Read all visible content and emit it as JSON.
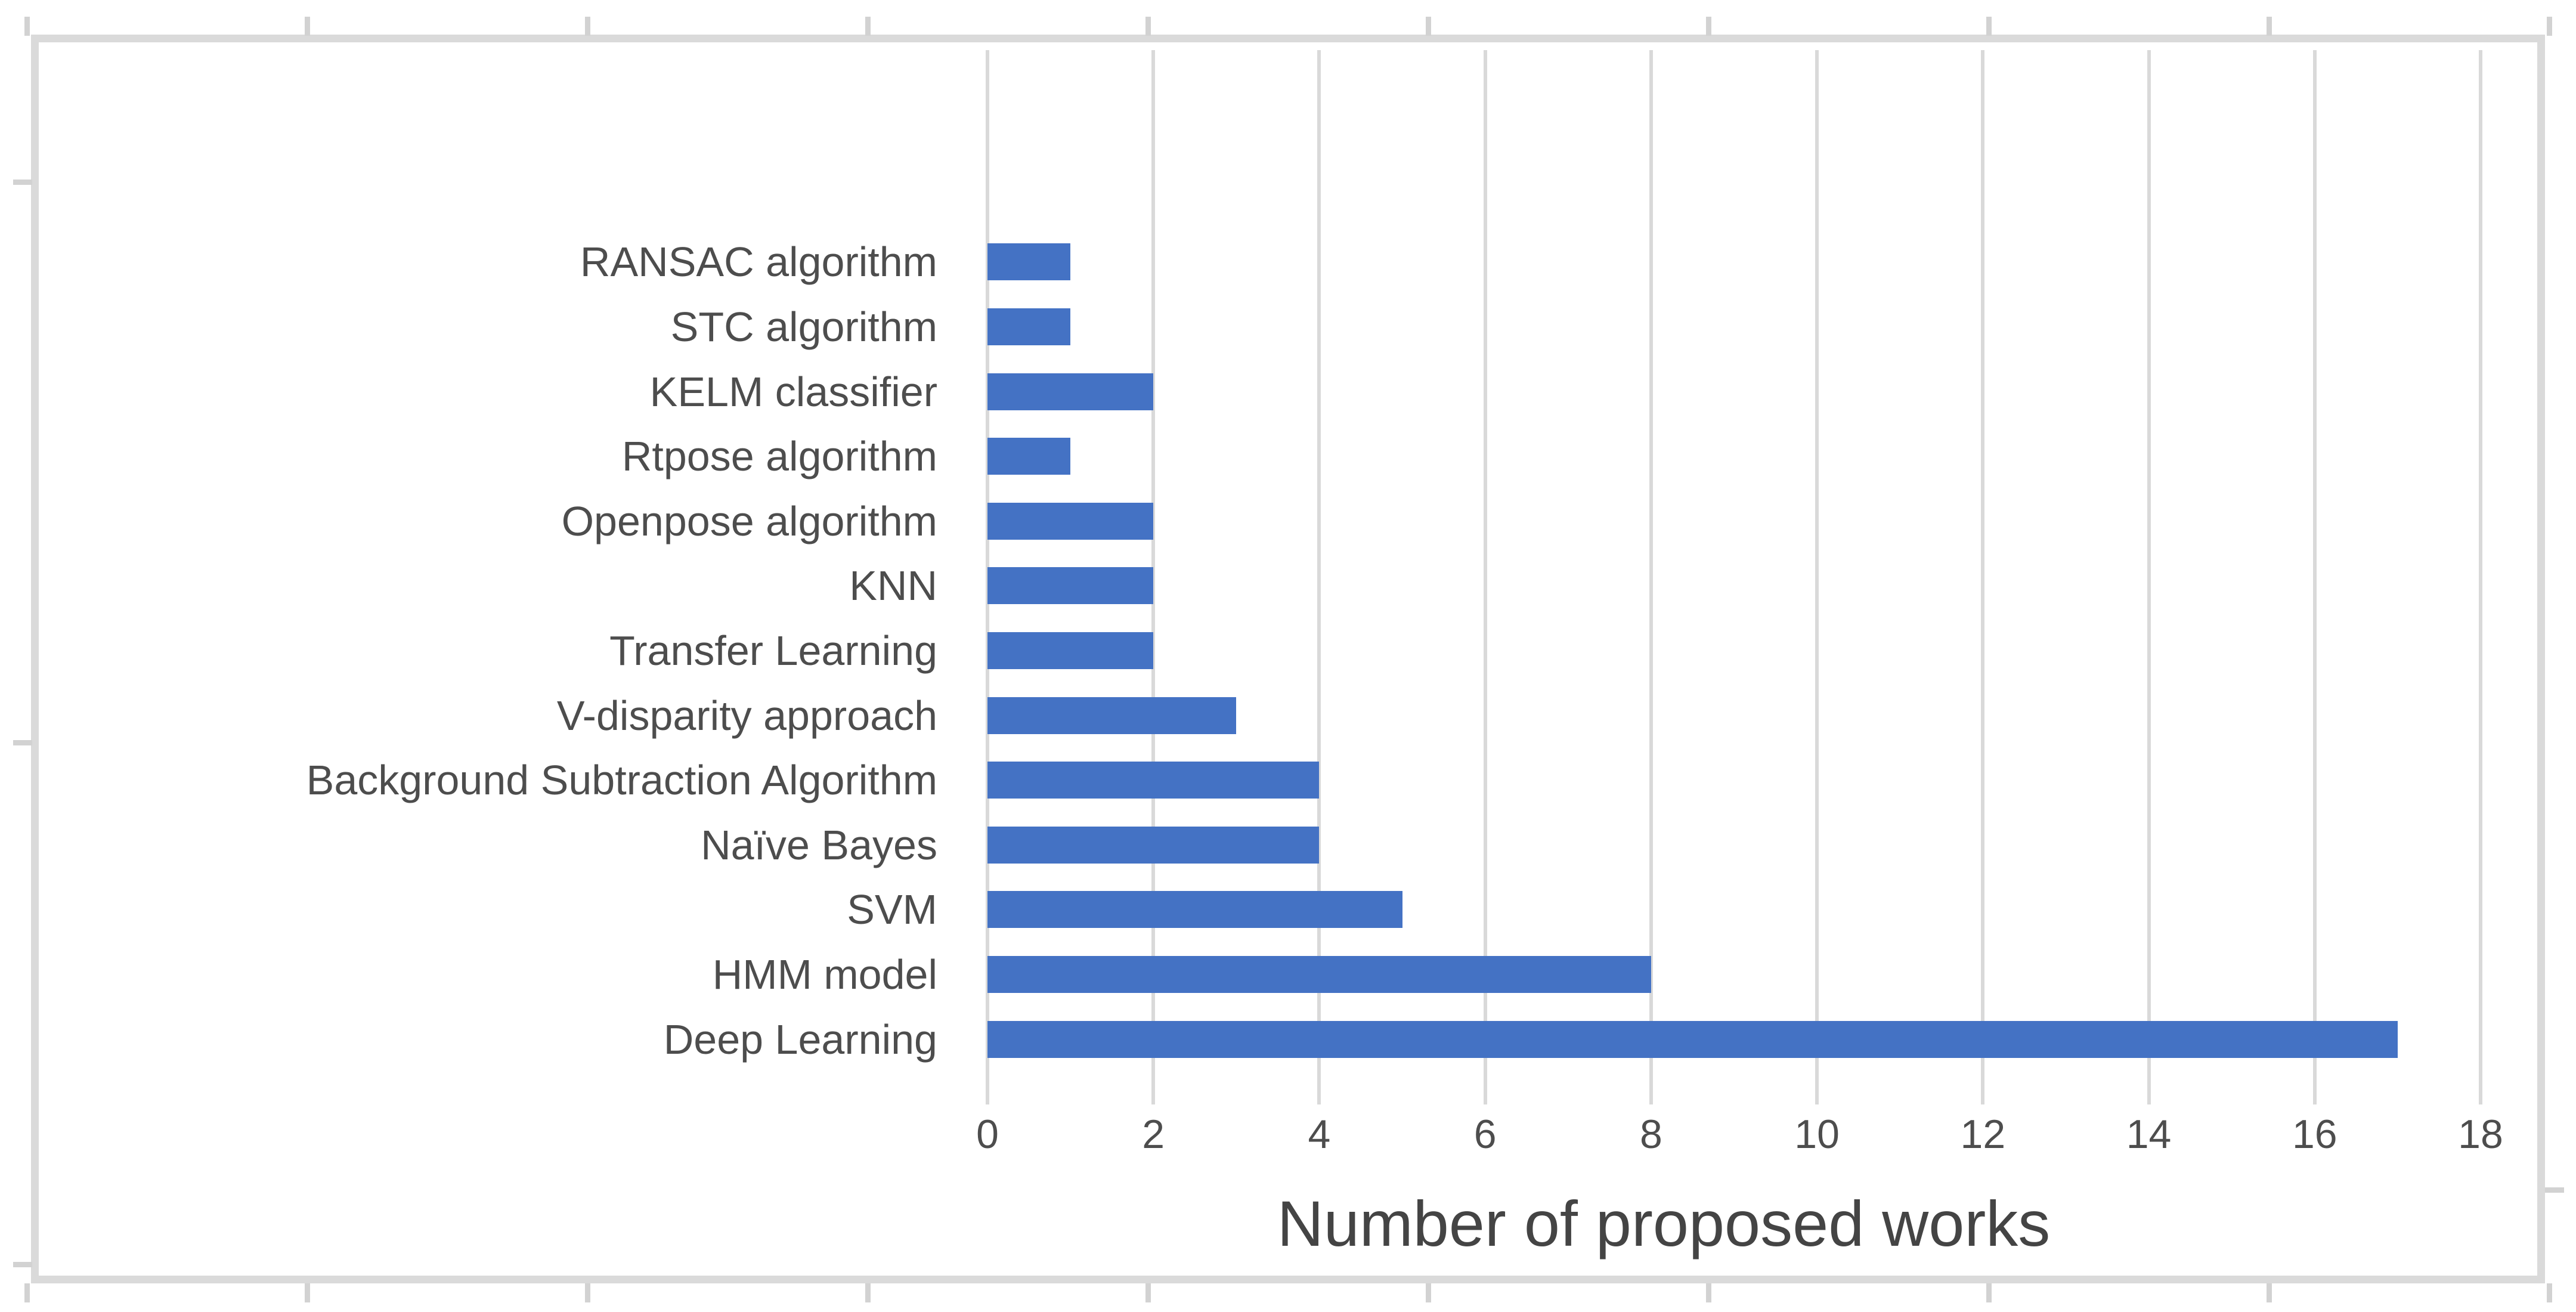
{
  "chart_data": {
    "type": "bar",
    "orientation": "horizontal",
    "title": "",
    "xlabel": "Number of proposed works",
    "ylabel": "",
    "categories": [
      "RANSAC algorithm",
      "STC algorithm",
      "KELM classifier",
      "Rtpose algorithm",
      "Openpose algorithm",
      "KNN",
      "Transfer Learning",
      "V-disparity approach",
      "Background Subtraction Algorithm",
      "Naïve Bayes",
      "SVM",
      "HMM model",
      "Deep Learning"
    ],
    "values": [
      1,
      1,
      2,
      1,
      2,
      2,
      2,
      3,
      4,
      4,
      5,
      8,
      17
    ],
    "xlim": [
      0,
      18
    ],
    "xticks": [
      0,
      2,
      4,
      6,
      8,
      10,
      12,
      14,
      16,
      18
    ],
    "grid": true,
    "legend_position": "none",
    "bar_color": "#4472C4",
    "gridline_color": "#D9D9D9",
    "frame_color": "#DADADA",
    "tick_label_color": "#4D4D4D",
    "axis_title_color": "#444444"
  }
}
